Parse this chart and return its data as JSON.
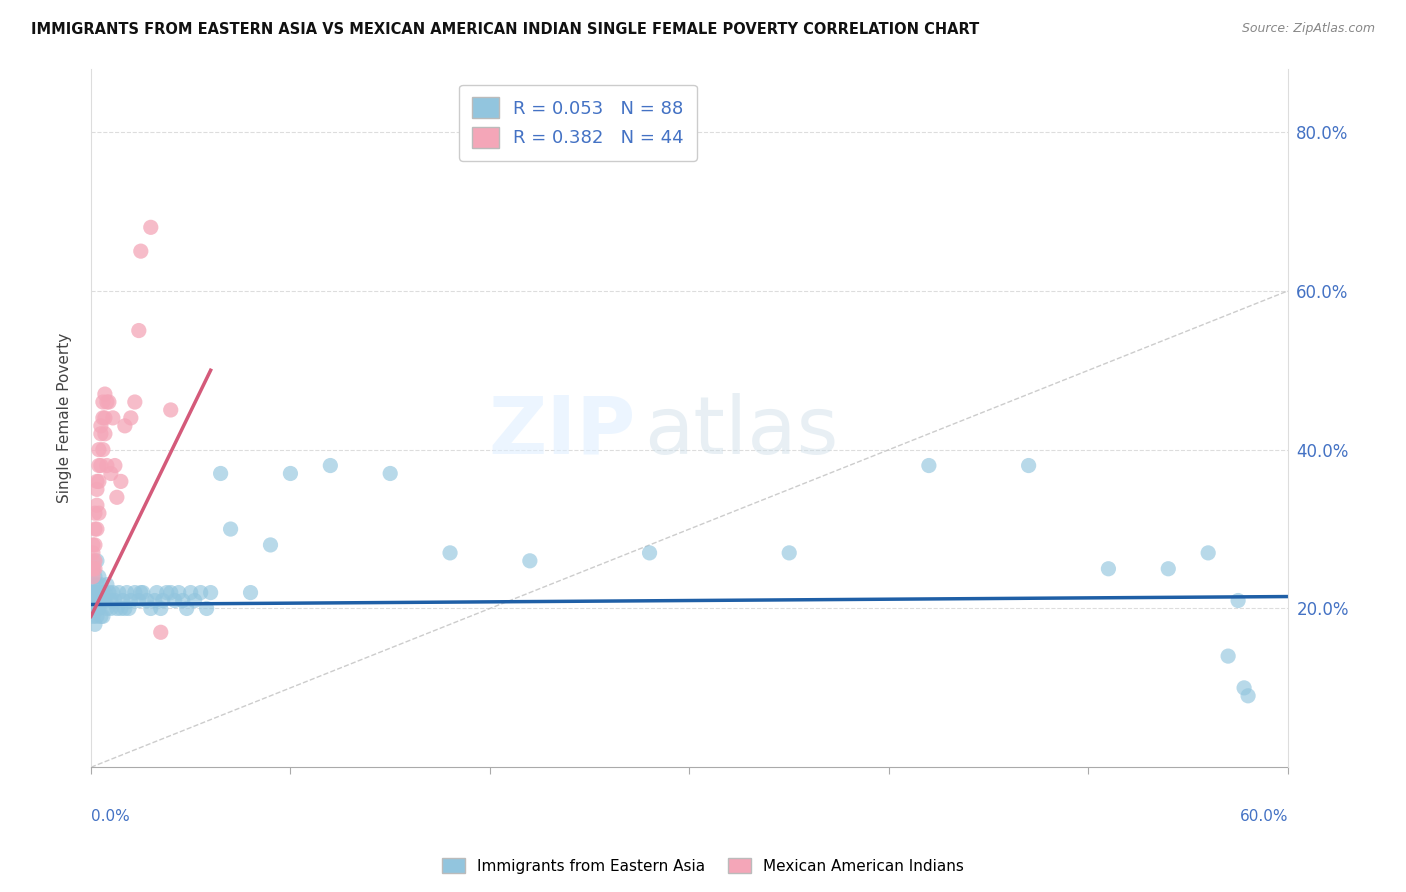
{
  "title": "IMMIGRANTS FROM EASTERN ASIA VS MEXICAN AMERICAN INDIAN SINGLE FEMALE POVERTY CORRELATION CHART",
  "source": "Source: ZipAtlas.com",
  "ylabel": "Single Female Poverty",
  "right_ytick_labels": [
    "20.0%",
    "40.0%",
    "60.0%",
    "80.0%"
  ],
  "right_yticks": [
    0.2,
    0.4,
    0.6,
    0.8
  ],
  "xlim": [
    0.0,
    0.6
  ],
  "ylim": [
    0.0,
    0.88
  ],
  "blue_R": 0.053,
  "blue_N": 88,
  "pink_R": 0.382,
  "pink_N": 44,
  "blue_color": "#92c5de",
  "pink_color": "#f4a6b8",
  "blue_line_color": "#1f5fa6",
  "pink_line_color": "#d45a7a",
  "diag_line_color": "#c0c0c0",
  "legend_label_blue": "Immigrants from Eastern Asia",
  "legend_label_pink": "Mexican American Indians",
  "blue_dots_x": [
    0.001,
    0.001,
    0.001,
    0.001,
    0.001,
    0.001,
    0.001,
    0.001,
    0.001,
    0.001,
    0.002,
    0.002,
    0.002,
    0.002,
    0.002,
    0.003,
    0.003,
    0.003,
    0.003,
    0.003,
    0.004,
    0.004,
    0.004,
    0.004,
    0.005,
    0.005,
    0.005,
    0.006,
    0.006,
    0.006,
    0.007,
    0.007,
    0.008,
    0.008,
    0.009,
    0.01,
    0.01,
    0.011,
    0.012,
    0.013,
    0.014,
    0.015,
    0.016,
    0.017,
    0.018,
    0.019,
    0.02,
    0.022,
    0.024,
    0.025,
    0.026,
    0.028,
    0.03,
    0.032,
    0.033,
    0.035,
    0.036,
    0.038,
    0.04,
    0.042,
    0.044,
    0.046,
    0.048,
    0.05,
    0.052,
    0.055,
    0.058,
    0.06,
    0.065,
    0.07,
    0.08,
    0.09,
    0.1,
    0.12,
    0.15,
    0.18,
    0.22,
    0.28,
    0.35,
    0.42,
    0.47,
    0.51,
    0.54,
    0.56,
    0.57,
    0.575,
    0.578,
    0.58
  ],
  "blue_dots_y": [
    0.25,
    0.23,
    0.22,
    0.22,
    0.21,
    0.21,
    0.2,
    0.2,
    0.2,
    0.19,
    0.24,
    0.22,
    0.21,
    0.2,
    0.18,
    0.26,
    0.23,
    0.22,
    0.2,
    0.19,
    0.24,
    0.22,
    0.21,
    0.2,
    0.23,
    0.21,
    0.19,
    0.22,
    0.21,
    0.19,
    0.22,
    0.21,
    0.23,
    0.2,
    0.22,
    0.21,
    0.2,
    0.22,
    0.21,
    0.2,
    0.22,
    0.2,
    0.21,
    0.2,
    0.22,
    0.2,
    0.21,
    0.22,
    0.21,
    0.22,
    0.22,
    0.21,
    0.2,
    0.21,
    0.22,
    0.2,
    0.21,
    0.22,
    0.22,
    0.21,
    0.22,
    0.21,
    0.2,
    0.22,
    0.21,
    0.22,
    0.2,
    0.22,
    0.37,
    0.3,
    0.22,
    0.28,
    0.37,
    0.38,
    0.37,
    0.27,
    0.26,
    0.27,
    0.27,
    0.38,
    0.38,
    0.25,
    0.25,
    0.27,
    0.14,
    0.21,
    0.1,
    0.09
  ],
  "pink_dots_x": [
    0.001,
    0.001,
    0.001,
    0.001,
    0.001,
    0.001,
    0.002,
    0.002,
    0.002,
    0.002,
    0.002,
    0.003,
    0.003,
    0.003,
    0.003,
    0.004,
    0.004,
    0.004,
    0.004,
    0.005,
    0.005,
    0.005,
    0.006,
    0.006,
    0.006,
    0.007,
    0.007,
    0.007,
    0.008,
    0.008,
    0.009,
    0.01,
    0.011,
    0.012,
    0.013,
    0.015,
    0.017,
    0.02,
    0.022,
    0.024,
    0.025,
    0.03,
    0.035,
    0.04
  ],
  "pink_dots_y": [
    0.28,
    0.27,
    0.26,
    0.25,
    0.25,
    0.24,
    0.32,
    0.3,
    0.28,
    0.26,
    0.25,
    0.36,
    0.35,
    0.33,
    0.3,
    0.4,
    0.38,
    0.36,
    0.32,
    0.43,
    0.42,
    0.38,
    0.46,
    0.44,
    0.4,
    0.47,
    0.44,
    0.42,
    0.46,
    0.38,
    0.46,
    0.37,
    0.44,
    0.38,
    0.34,
    0.36,
    0.43,
    0.44,
    0.46,
    0.55,
    0.65,
    0.68,
    0.17,
    0.45
  ],
  "blue_trend_x": [
    0.0,
    0.6
  ],
  "blue_trend_y": [
    0.205,
    0.215
  ],
  "pink_trend_x": [
    0.0,
    0.06
  ],
  "pink_trend_y": [
    0.19,
    0.5
  ]
}
